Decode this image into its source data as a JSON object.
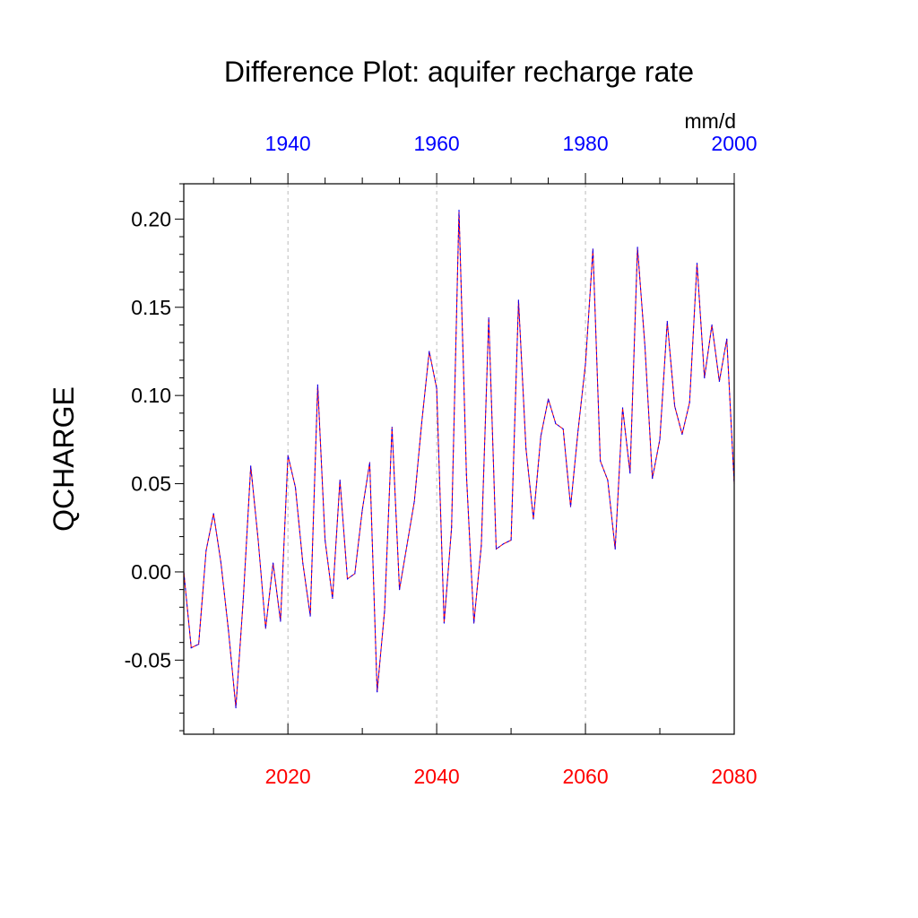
{
  "chart_data": {
    "type": "line",
    "title": "Difference Plot: aquifer recharge rate",
    "ylabel": "QCHARGE",
    "units": "mm/d",
    "colors": {
      "bottom_axis": "#ff0000",
      "top_axis": "#0000ff",
      "line_a": "#ff0000",
      "line_b": "#0000ff"
    },
    "x_bottom": {
      "ticks": [
        "2020",
        "2040",
        "2060",
        "2080"
      ],
      "range": [
        2006,
        2080
      ]
    },
    "x_top": {
      "ticks": [
        "1940",
        "1960",
        "1980",
        "2000"
      ],
      "range": [
        1926,
        2000
      ]
    },
    "y": {
      "ticks": [
        "0.20",
        "0.15",
        "0.10",
        "0.05",
        "0.00",
        "-0.05"
      ],
      "range": [
        -0.092,
        0.22
      ]
    },
    "grid": "vertical dashed at major x ticks",
    "series": [
      {
        "x": [
          2006,
          2007,
          2008,
          2009,
          2010,
          2011,
          2012,
          2013,
          2014,
          2015,
          2016,
          2017,
          2018,
          2019,
          2020,
          2021,
          2022,
          2023,
          2024,
          2025,
          2026,
          2027,
          2028,
          2029,
          2030,
          2031,
          2032,
          2033,
          2034,
          2035,
          2036,
          2037,
          2038,
          2039,
          2040,
          2041,
          2042,
          2043,
          2044,
          2045,
          2046,
          2047,
          2048,
          2049,
          2050,
          2051,
          2052,
          2053,
          2054,
          2055,
          2056,
          2057,
          2058,
          2059,
          2060,
          2061,
          2062,
          2063,
          2064,
          2065,
          2066,
          2067,
          2068,
          2069,
          2070,
          2071,
          2072,
          2073,
          2074,
          2075,
          2076,
          2077,
          2078,
          2079,
          2080
        ],
        "values": [
          0.0,
          -0.043,
          -0.041,
          0.012,
          0.033,
          0.005,
          -0.033,
          -0.077,
          -0.015,
          0.06,
          0.018,
          -0.032,
          0.005,
          -0.028,
          0.066,
          0.048,
          0.005,
          -0.025,
          0.106,
          0.018,
          -0.015,
          0.052,
          -0.004,
          -0.001,
          0.035,
          0.062,
          -0.068,
          -0.022,
          0.082,
          -0.01,
          0.015,
          0.04,
          0.085,
          0.125,
          0.104,
          -0.029,
          0.025,
          0.205,
          0.055,
          -0.029,
          0.015,
          0.144,
          0.013,
          0.016,
          0.018,
          0.154,
          0.07,
          0.03,
          0.077,
          0.098,
          0.084,
          0.081,
          0.037,
          0.08,
          0.118,
          0.183,
          0.063,
          0.052,
          0.013,
          0.093,
          0.056,
          0.184,
          0.128,
          0.053,
          0.075,
          0.142,
          0.094,
          0.078,
          0.096,
          0.175,
          0.11,
          0.14,
          0.108,
          0.132,
          0.05
        ]
      }
    ]
  }
}
